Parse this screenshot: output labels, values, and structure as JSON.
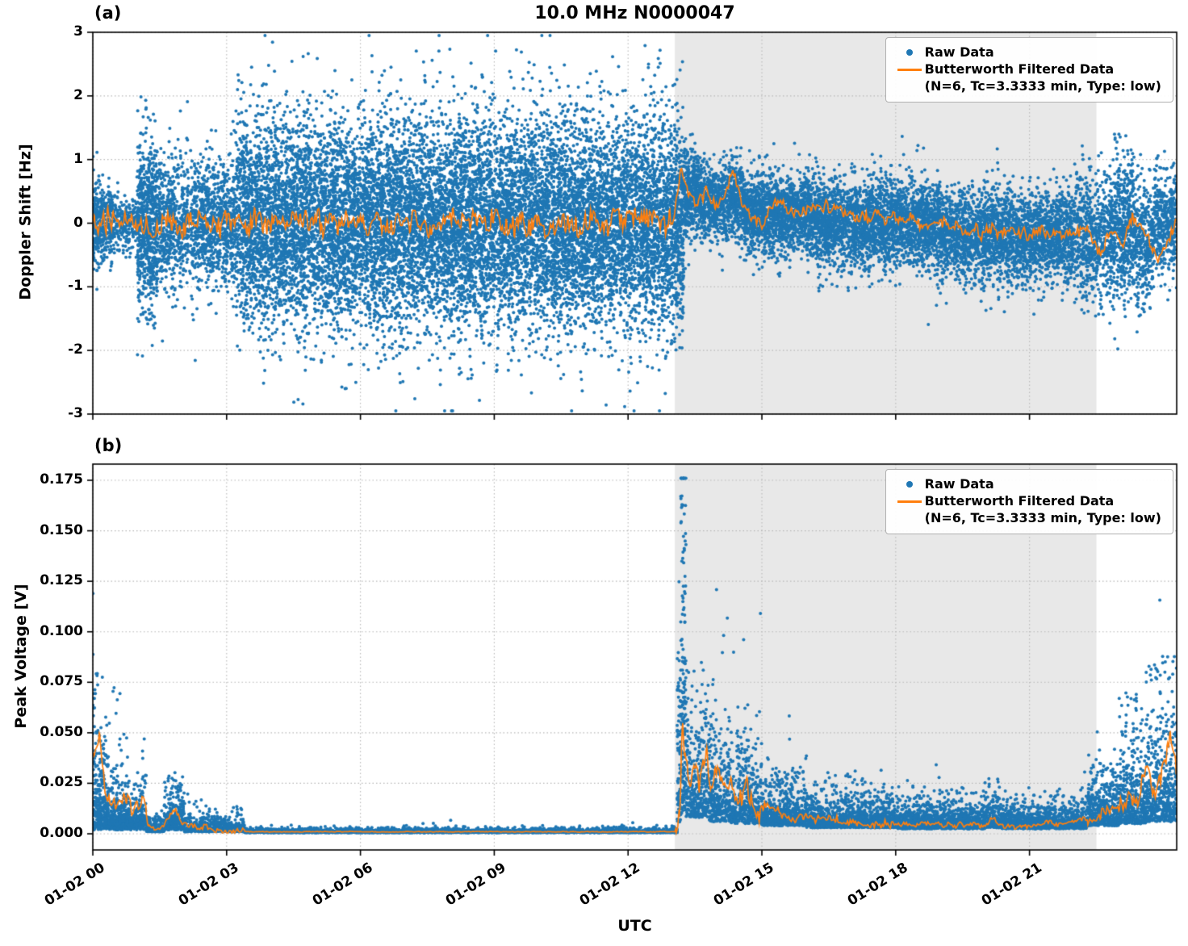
{
  "title": "10.0 MHz N0000047",
  "xlabel": "UTC",
  "legend": {
    "raw": "Raw Data",
    "filtered1": "Butterworth Filtered Data",
    "filtered2": "(N=6, Tc=3.3333 min, Type: low)"
  },
  "colors": {
    "raw": "#1f77b4",
    "filtered": "#ff7f0e",
    "band": "#e8e8e8",
    "grid": "#b8b8b8",
    "spine": "#000000",
    "background": "#ffffff"
  },
  "seed": 47,
  "chart_data": [
    {
      "type": "scatter",
      "panel_label": "(a)",
      "title": "10.0 MHz N0000047",
      "xlabel": "",
      "ylabel": "Doppler Shift [Hz]",
      "xlim_hours": [
        0,
        24.3
      ],
      "ylim": [
        -3,
        3
      ],
      "yticks": [
        -3,
        -2,
        -1,
        0,
        1,
        2,
        3
      ],
      "ytick_labels": [
        "-3",
        "-2",
        "-1",
        "0",
        "1",
        "2",
        "3"
      ],
      "xticks_hours": [
        0,
        3,
        6,
        9,
        12,
        15,
        18,
        21
      ],
      "xtick_labels": [
        "01-02 00",
        "01-02 03",
        "01-02 06",
        "01-02 09",
        "01-02 12",
        "01-02 15",
        "01-02 18",
        "01-02 21"
      ],
      "show_xtick_labels": false,
      "grid": "dotted",
      "legend_position": "upper right",
      "shaded_region_hours": [
        13.05,
        22.5
      ],
      "clip_y": [
        -2.95,
        2.95
      ],
      "series": [
        {
          "name": "Raw Data",
          "kind": "scatter",
          "marker": "dot",
          "segments": [
            {
              "t0": 0,
              "t1": 0.15,
              "n": 150,
              "mean": 0,
              "sd": 0.35
            },
            {
              "t0": 0.15,
              "t1": 0.5,
              "n": 250,
              "mean": 0,
              "sd": 0.3
            },
            {
              "t0": 0.5,
              "t1": 1.0,
              "n": 200,
              "mean": 0,
              "sd": 0.22
            },
            {
              "t0": 1.0,
              "t1": 1.45,
              "n": 700,
              "mean": 0,
              "sd": 0.65,
              "tailFrac": 0.1,
              "tailSd": 1.0
            },
            {
              "t0": 1.45,
              "t1": 2.1,
              "n": 500,
              "mean": 0,
              "sd": 0.45,
              "tailFrac": 0.05,
              "tailSd": 0.9
            },
            {
              "t0": 2.1,
              "t1": 3.2,
              "n": 900,
              "mean": 0,
              "sd": 0.5,
              "tailFrac": 0.05,
              "tailSd": 0.8
            },
            {
              "t0": 3.2,
              "t1": 13.25,
              "n": 14000,
              "mean": 0,
              "sd": 0.8,
              "tailFrac": 0.06,
              "tailSd": 1.15
            },
            {
              "t0": 13.25,
              "t1": 13.6,
              "n": 400,
              "mean": 0.45,
              "sd": 0.35
            },
            {
              "t0": 13.6,
              "t1": 14.6,
              "n": 900,
              "mean": 0.35,
              "sd": 0.3
            },
            {
              "t0": 14.6,
              "t1": 16.2,
              "n": 1600,
              "mean": 0.15,
              "sd": 0.32
            },
            {
              "t0": 16.2,
              "t1": 19.0,
              "n": 2800,
              "mean": 0,
              "sd": 0.34,
              "tailFrac": 0.02,
              "tailSd": 0.6
            },
            {
              "t0": 19.0,
              "t1": 22.0,
              "n": 2800,
              "mean": -0.2,
              "sd": 0.35,
              "tailFrac": 0.02,
              "tailSd": 0.6
            },
            {
              "t0": 22.0,
              "t1": 22.9,
              "n": 700,
              "mean": -0.25,
              "sd": 0.5
            },
            {
              "t0": 22.9,
              "t1": 23.35,
              "n": 450,
              "mean": -0.1,
              "sd": 0.55
            },
            {
              "t0": 23.35,
              "t1": 23.8,
              "n": 350,
              "mean": -0.35,
              "sd": 0.45
            },
            {
              "t0": 23.8,
              "t1": 24.3,
              "n": 400,
              "mean": 0,
              "sd": 0.4
            }
          ]
        },
        {
          "name": "Butterworth Filtered Data (N=6, Tc=3.3333 min, Type: low)",
          "kind": "line",
          "control_points": [
            [
              0,
              0
            ],
            [
              13.0,
              0.02
            ],
            [
              13.2,
              0.9
            ],
            [
              13.35,
              0.45
            ],
            [
              13.55,
              0.3
            ],
            [
              13.75,
              0.55
            ],
            [
              13.95,
              0.25
            ],
            [
              14.15,
              0.4
            ],
            [
              14.35,
              0.85
            ],
            [
              14.55,
              0.35
            ],
            [
              14.8,
              0.1
            ],
            [
              15.05,
              -0.05
            ],
            [
              15.3,
              0.35
            ],
            [
              15.6,
              0.25
            ],
            [
              16.0,
              0.2
            ],
            [
              16.5,
              0.22
            ],
            [
              17.0,
              0.12
            ],
            [
              17.5,
              0.1
            ],
            [
              18.0,
              0.12
            ],
            [
              18.5,
              0.03
            ],
            [
              19.0,
              0.0
            ],
            [
              19.5,
              -0.1
            ],
            [
              20.0,
              -0.15
            ],
            [
              20.5,
              -0.1
            ],
            [
              21.0,
              -0.2
            ],
            [
              21.5,
              -0.12
            ],
            [
              22.0,
              -0.22
            ],
            [
              22.3,
              -0.08
            ],
            [
              22.6,
              -0.45
            ],
            [
              22.85,
              -0.15
            ],
            [
              23.1,
              -0.35
            ],
            [
              23.3,
              0.15
            ],
            [
              23.5,
              0.05
            ],
            [
              23.7,
              -0.3
            ],
            [
              23.9,
              -0.5
            ],
            [
              24.1,
              -0.25
            ],
            [
              24.3,
              0.05
            ]
          ],
          "wiggle": [
            [
              0,
              0.55,
              0.3
            ],
            [
              0.55,
              1.0,
              0.17
            ],
            [
              1.0,
              13.05,
              0.22
            ],
            [
              13.05,
              24.3,
              0.12
            ]
          ]
        }
      ]
    },
    {
      "type": "scatter",
      "panel_label": "(b)",
      "title": "",
      "xlabel": "UTC",
      "ylabel": "Peak Voltage [V]",
      "xlim_hours": [
        0,
        24.3
      ],
      "ylim": [
        -0.008,
        0.183
      ],
      "yticks": [
        0.0,
        0.025,
        0.05,
        0.075,
        0.1,
        0.125,
        0.15,
        0.175
      ],
      "ytick_labels": [
        "0.000",
        "0.025",
        "0.050",
        "0.075",
        "0.100",
        "0.125",
        "0.150",
        "0.175"
      ],
      "xticks_hours": [
        0,
        3,
        6,
        9,
        12,
        15,
        18,
        21
      ],
      "xtick_labels": [
        "01-02 00",
        "01-02 03",
        "01-02 06",
        "01-02 09",
        "01-02 12",
        "01-02 15",
        "01-02 18",
        "01-02 21"
      ],
      "show_xtick_labels": true,
      "grid": "dotted",
      "legend_position": "upper right",
      "shaded_region_hours": [
        13.05,
        22.5
      ],
      "clip_y": [
        0,
        0.176
      ],
      "series": [
        {
          "name": "Raw Data",
          "kind": "scatter",
          "marker": "dot",
          "segments": [
            {
              "t0": 0,
              "t1": 0.12,
              "n": 120,
              "base": 0.002,
              "scale": 0.02,
              "spikeFrac": 0.08,
              "spikeLo": 0.05,
              "spikeHi": 0.088
            },
            {
              "t0": 0.12,
              "t1": 0.35,
              "n": 250,
              "base": 0.002,
              "scale": 0.012,
              "spikeFrac": 0.04,
              "spikeLo": 0.03,
              "spikeHi": 0.08
            },
            {
              "t0": 0.35,
              "t1": 0.75,
              "n": 300,
              "base": 0.002,
              "scale": 0.008,
              "spikeFrac": 0.03,
              "spikeLo": 0.03,
              "spikeHi": 0.075
            },
            {
              "t0": 0.75,
              "t1": 1.2,
              "n": 300,
              "base": 0.002,
              "scale": 0.007,
              "spikeFrac": 0.02,
              "spikeLo": 0.02,
              "spikeHi": 0.05
            },
            {
              "t0": 1.2,
              "t1": 1.6,
              "n": 250,
              "base": 0.001,
              "scale": 0.002
            },
            {
              "t0": 1.6,
              "t1": 2.05,
              "n": 300,
              "base": 0.002,
              "scale": 0.006,
              "spikeFrac": 0.02,
              "spikeLo": 0.02,
              "spikeHi": 0.03
            },
            {
              "t0": 2.05,
              "t1": 3.4,
              "n": 600,
              "base": 0.001,
              "scale": 0.0025
            },
            {
              "t0": 3.4,
              "t1": 13.1,
              "n": 4000,
              "base": 0.0006,
              "scale": 0.0006
            },
            {
              "t0": 13.1,
              "t1": 13.18,
              "n": 80,
              "base": 0.005,
              "scale": 0.02,
              "spikeFrac": 0.3,
              "spikeLo": 0.04,
              "spikeHi": 0.09
            },
            {
              "t0": 13.18,
              "t1": 13.3,
              "n": 160,
              "base": 0.01,
              "scale": 0.05,
              "spikeFrac": 0.25,
              "spikeLo": 0.06,
              "spikeHi": 0.174
            },
            {
              "t0": 13.3,
              "t1": 13.8,
              "n": 350,
              "base": 0.008,
              "scale": 0.018,
              "spikeFrac": 0.05,
              "spikeLo": 0.04,
              "spikeHi": 0.065
            },
            {
              "t0": 13.8,
              "t1": 14.3,
              "n": 350,
              "base": 0.006,
              "scale": 0.015,
              "spikeFrac": 0.04,
              "spikeLo": 0.03,
              "spikeHi": 0.06
            },
            {
              "t0": 14.3,
              "t1": 15.0,
              "n": 450,
              "base": 0.005,
              "scale": 0.012,
              "spikeFrac": 0.03,
              "spikeLo": 0.025,
              "spikeHi": 0.047
            },
            {
              "t0": 15.0,
              "t1": 16.0,
              "n": 700,
              "base": 0.004,
              "scale": 0.007
            },
            {
              "t0": 16.0,
              "t1": 18.0,
              "n": 1300,
              "base": 0.003,
              "scale": 0.005
            },
            {
              "t0": 18.0,
              "t1": 20.0,
              "n": 1300,
              "base": 0.0025,
              "scale": 0.004,
              "spikeFrac": 0.005,
              "spikeLo": 0.015,
              "spikeHi": 0.022
            },
            {
              "t0": 20.0,
              "t1": 20.35,
              "n": 200,
              "base": 0.003,
              "scale": 0.006,
              "spikeFrac": 0.03,
              "spikeLo": 0.015,
              "spikeHi": 0.028
            },
            {
              "t0": 20.35,
              "t1": 22.3,
              "n": 1200,
              "base": 0.0025,
              "scale": 0.004
            },
            {
              "t0": 22.3,
              "t1": 23.0,
              "n": 500,
              "base": 0.004,
              "scale": 0.008,
              "spikeFrac": 0.02,
              "spikeLo": 0.02,
              "spikeHi": 0.045
            },
            {
              "t0": 23.0,
              "t1": 23.6,
              "n": 450,
              "base": 0.005,
              "scale": 0.012,
              "spikeFrac": 0.06,
              "spikeLo": 0.03,
              "spikeHi": 0.07
            },
            {
              "t0": 23.6,
              "t1": 24.3,
              "n": 500,
              "base": 0.006,
              "scale": 0.015,
              "spikeFrac": 0.08,
              "spikeLo": 0.04,
              "spikeHi": 0.088
            }
          ]
        },
        {
          "name": "Butterworth Filtered Data (N=6, Tc=3.3333 min, Type: low)",
          "kind": "line",
          "control_points": [
            [
              0,
              0.035
            ],
            [
              0.15,
              0.05
            ],
            [
              0.3,
              0.02
            ],
            [
              0.5,
              0.015
            ],
            [
              0.7,
              0.02
            ],
            [
              0.9,
              0.012
            ],
            [
              1.1,
              0.018
            ],
            [
              1.25,
              0.003
            ],
            [
              1.5,
              0.002
            ],
            [
              1.7,
              0.008
            ],
            [
              1.85,
              0.012
            ],
            [
              2.0,
              0.006
            ],
            [
              2.3,
              0.003
            ],
            [
              2.6,
              0.003
            ],
            [
              3.0,
              0.0015
            ],
            [
              3.5,
              0.001
            ],
            [
              13.05,
              0.001
            ],
            [
              13.15,
              0.01
            ],
            [
              13.22,
              0.055
            ],
            [
              13.3,
              0.03
            ],
            [
              13.4,
              0.02
            ],
            [
              13.5,
              0.035
            ],
            [
              13.6,
              0.02
            ],
            [
              13.75,
              0.045
            ],
            [
              13.85,
              0.025
            ],
            [
              14.0,
              0.035
            ],
            [
              14.15,
              0.02
            ],
            [
              14.3,
              0.025
            ],
            [
              14.5,
              0.015
            ],
            [
              14.7,
              0.022
            ],
            [
              14.9,
              0.012
            ],
            [
              15.1,
              0.015
            ],
            [
              15.4,
              0.01
            ],
            [
              15.7,
              0.008
            ],
            [
              16.0,
              0.009
            ],
            [
              16.5,
              0.007
            ],
            [
              17.0,
              0.006
            ],
            [
              17.5,
              0.005
            ],
            [
              18.0,
              0.005
            ],
            [
              18.5,
              0.004
            ],
            [
              19.0,
              0.005
            ],
            [
              19.5,
              0.004
            ],
            [
              20.0,
              0.004
            ],
            [
              20.2,
              0.008
            ],
            [
              20.4,
              0.004
            ],
            [
              21.0,
              0.004
            ],
            [
              21.5,
              0.005
            ],
            [
              22.0,
              0.006
            ],
            [
              22.3,
              0.008
            ],
            [
              22.6,
              0.012
            ],
            [
              22.9,
              0.015
            ],
            [
              23.2,
              0.02
            ],
            [
              23.4,
              0.012
            ],
            [
              23.6,
              0.03
            ],
            [
              23.8,
              0.02
            ],
            [
              24.0,
              0.035
            ],
            [
              24.15,
              0.05
            ],
            [
              24.3,
              0.03
            ]
          ],
          "wiggle": [
            [
              0,
              1.2,
              0.005
            ],
            [
              1.2,
              3.4,
              0.0015
            ],
            [
              3.4,
              13.08,
              0.0002
            ],
            [
              13.08,
              15.0,
              0.007
            ],
            [
              15.0,
              18.0,
              0.0025
            ],
            [
              18.0,
              22.3,
              0.0015
            ],
            [
              22.3,
              24.3,
              0.006
            ]
          ]
        }
      ]
    }
  ]
}
